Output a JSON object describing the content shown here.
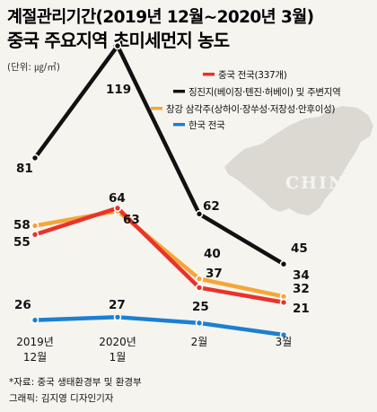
{
  "title_line1": "계절관리기간(2019년 12월~2020년 3월)",
  "title_line2": "중국 주요지역 초미세먼지 농도",
  "unit": "(단위: ㎍/㎥)",
  "map_label": "CHINA",
  "footer": {
    "source": "*자료: 중국 생태환경부 및 환경부",
    "credit": "그래픽: 김지영 디자인기자"
  },
  "colors": {
    "china": "#e8332a",
    "jingjinji": "#111111",
    "changjiang": "#f5a636",
    "korea": "#1c7fd1",
    "background": "#f6f4ef",
    "map": "#dcd9d3"
  },
  "chart_data": {
    "type": "line",
    "x": [
      "2019년 12월",
      "2020년 1월",
      "2월",
      "3월"
    ],
    "x_tick_labels": [
      [
        "2019년",
        "12월"
      ],
      [
        "2020년",
        "1월"
      ],
      [
        "2월"
      ],
      [
        "3월"
      ]
    ],
    "ylim": [
      0,
      130
    ],
    "grid": false,
    "legend_position": "top-right",
    "series": [
      {
        "key": "china",
        "name": "중국 전국(337개)",
        "values": [
          55,
          64,
          37,
          32
        ]
      },
      {
        "key": "jingjinji",
        "name": "징진지(베이징·톈진·허베이) 및 주변지역",
        "values": [
          81,
          119,
          62,
          45
        ]
      },
      {
        "key": "changjiang",
        "name": "창강 삼각주(상하이·장쑤성·저장성·안후이성)",
        "values": [
          58,
          63,
          40,
          34
        ]
      },
      {
        "key": "korea",
        "name": "한국 전국",
        "values": [
          26,
          27,
          25,
          21
        ]
      }
    ]
  }
}
